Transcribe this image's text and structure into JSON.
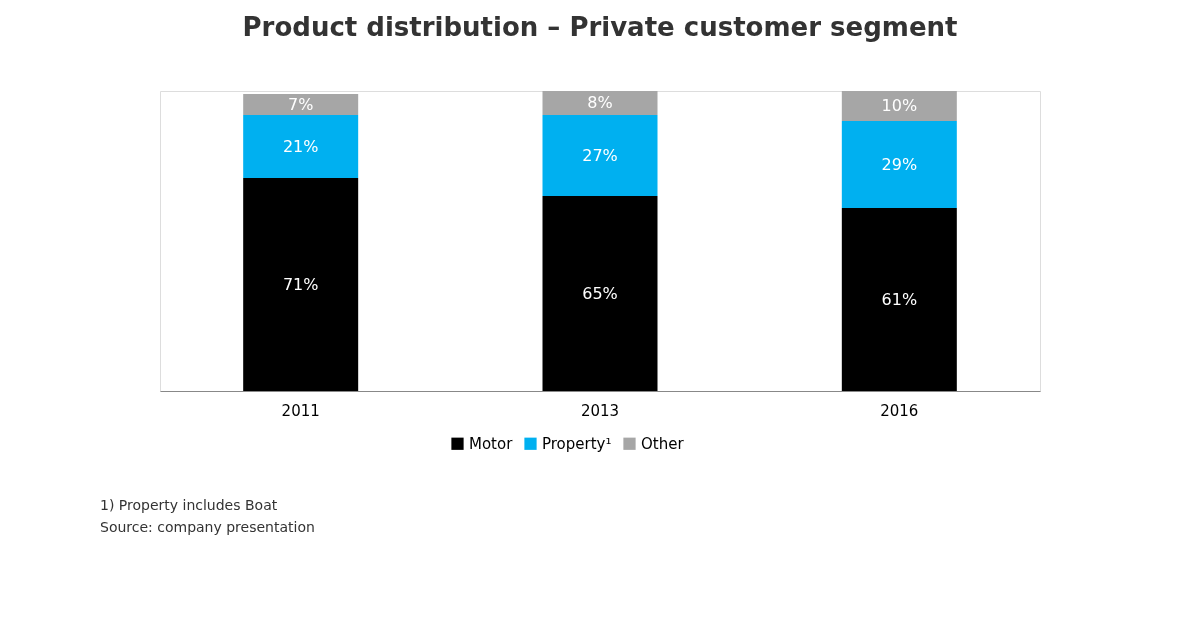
{
  "chart_data": {
    "type": "bar",
    "title": "Product distribution – Private customer segment",
    "categories": [
      "2011",
      "2013",
      "2016"
    ],
    "stacked": true,
    "legend": "bottom",
    "grid": false,
    "series": [
      {
        "name": "Motor",
        "color": "#000000",
        "values": [
          71,
          65,
          61
        ],
        "value_labels": [
          "71%",
          "65%",
          "61%"
        ]
      },
      {
        "name": "Property¹",
        "color": "#00b0f0",
        "values": [
          21,
          27,
          29
        ],
        "value_labels": [
          "21%",
          "27%",
          "29%"
        ]
      },
      {
        "name": "Other",
        "color": "#a6a6a6",
        "values": [
          7,
          8,
          10
        ],
        "value_labels": [
          "7%",
          "8%",
          "10%"
        ]
      }
    ],
    "annotations": [
      "1) Property includes Boat",
      "Source: company presentation"
    ]
  }
}
